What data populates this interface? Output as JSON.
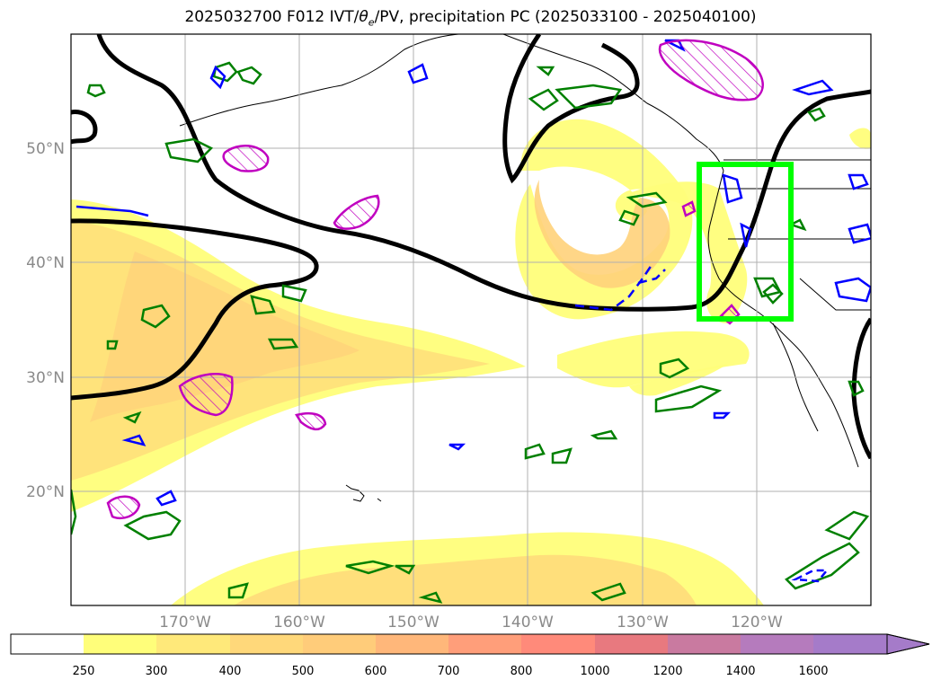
{
  "title": {
    "prefix": "2025032700 F012 IVT/",
    "theta": "θ",
    "theta_sub": "e",
    "suffix": "/PV, precipitation PC (2025033100 - 2025040100)"
  },
  "map": {
    "lat_labels": [
      "50°N",
      "40°N",
      "30°N",
      "20°N"
    ],
    "lat_values": [
      50,
      40,
      30,
      20
    ],
    "lon_labels": [
      "170°W",
      "160°W",
      "150°W",
      "140°W",
      "130°W",
      "120°W"
    ],
    "lon_values": [
      -170,
      -160,
      -150,
      -140,
      -130,
      -120
    ],
    "extent": {
      "lon": [
        -180,
        -110
      ],
      "lat": [
        10,
        60
      ]
    },
    "colors": {
      "border": "#000000",
      "gridline": "#b0b0b0",
      "pv_contour": "#000000",
      "green_contour": "#008000",
      "blue_contour": "#0000ff",
      "magenta_contour": "#c000c0",
      "highlight_box": "#00ff00"
    },
    "highlight_box": {
      "lon": [
        -125,
        -118
      ],
      "lat": [
        35,
        48.5
      ]
    }
  },
  "colorbar": {
    "ticks": [
      "250",
      "300",
      "400",
      "500",
      "600",
      "700",
      "800",
      "1000",
      "1200",
      "1400",
      "1600"
    ],
    "colors": [
      "#ffffff",
      "#fffe7a",
      "#ffe97a",
      "#ffd87a",
      "#ffcc7a",
      "#ffb77a",
      "#ff9e7a",
      "#ff8a7a",
      "#e8797f",
      "#c97aa0",
      "#b57bbd",
      "#a57bc9"
    ]
  }
}
